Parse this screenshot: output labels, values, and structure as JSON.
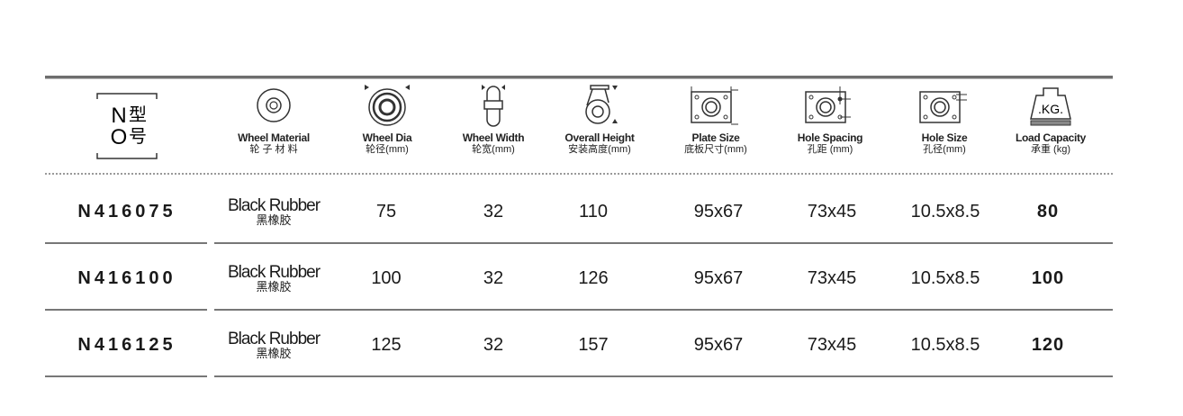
{
  "header": {
    "model": {
      "n": "N",
      "o": "O",
      "cn1": "型",
      "cn2": "号"
    },
    "columns": [
      {
        "en": "Wheel Material",
        "cn": "轮 子 材 料",
        "icon": "wheel-icon"
      },
      {
        "en": "Wheel Dia",
        "cn": "轮径(mm)",
        "icon": "wheel-diameter-icon"
      },
      {
        "en": "Wheel Width",
        "cn": "轮宽(mm)",
        "icon": "wheel-width-icon"
      },
      {
        "en": "Overall Height",
        "cn": "安装高度(mm)",
        "icon": "caster-height-icon"
      },
      {
        "en": "Plate Size",
        "cn": "底板尺寸(mm)",
        "icon": "plate-size-icon"
      },
      {
        "en": "Hole Spacing",
        "cn": "孔距 (mm)",
        "icon": "hole-spacing-icon"
      },
      {
        "en": "Hole Size",
        "cn": "孔径(mm)",
        "icon": "hole-size-icon"
      },
      {
        "en": "Load Capacity",
        "cn": "承重 (kg)",
        "icon": "weight-icon"
      }
    ],
    "weight_label": ".KG."
  },
  "rows": [
    {
      "code": "N416075",
      "mat_en": "Black Rubber",
      "mat_cn": "黑橡胶",
      "dia": "75",
      "width": "32",
      "height": "110",
      "plate": "95x67",
      "spacing": "73x45",
      "hole": "10.5x8.5",
      "load": "80"
    },
    {
      "code": "N416100",
      "mat_en": "Black Rubber",
      "mat_cn": "黑橡胶",
      "dia": "100",
      "width": "32",
      "height": "126",
      "plate": "95x67",
      "spacing": "73x45",
      "hole": "10.5x8.5",
      "load": "100"
    },
    {
      "code": "N416125",
      "mat_en": "Black Rubber",
      "mat_cn": "黑橡胶",
      "dia": "125",
      "width": "32",
      "height": "157",
      "plate": "95x67",
      "spacing": "73x45",
      "hole": "10.5x8.5",
      "load": "120"
    }
  ]
}
